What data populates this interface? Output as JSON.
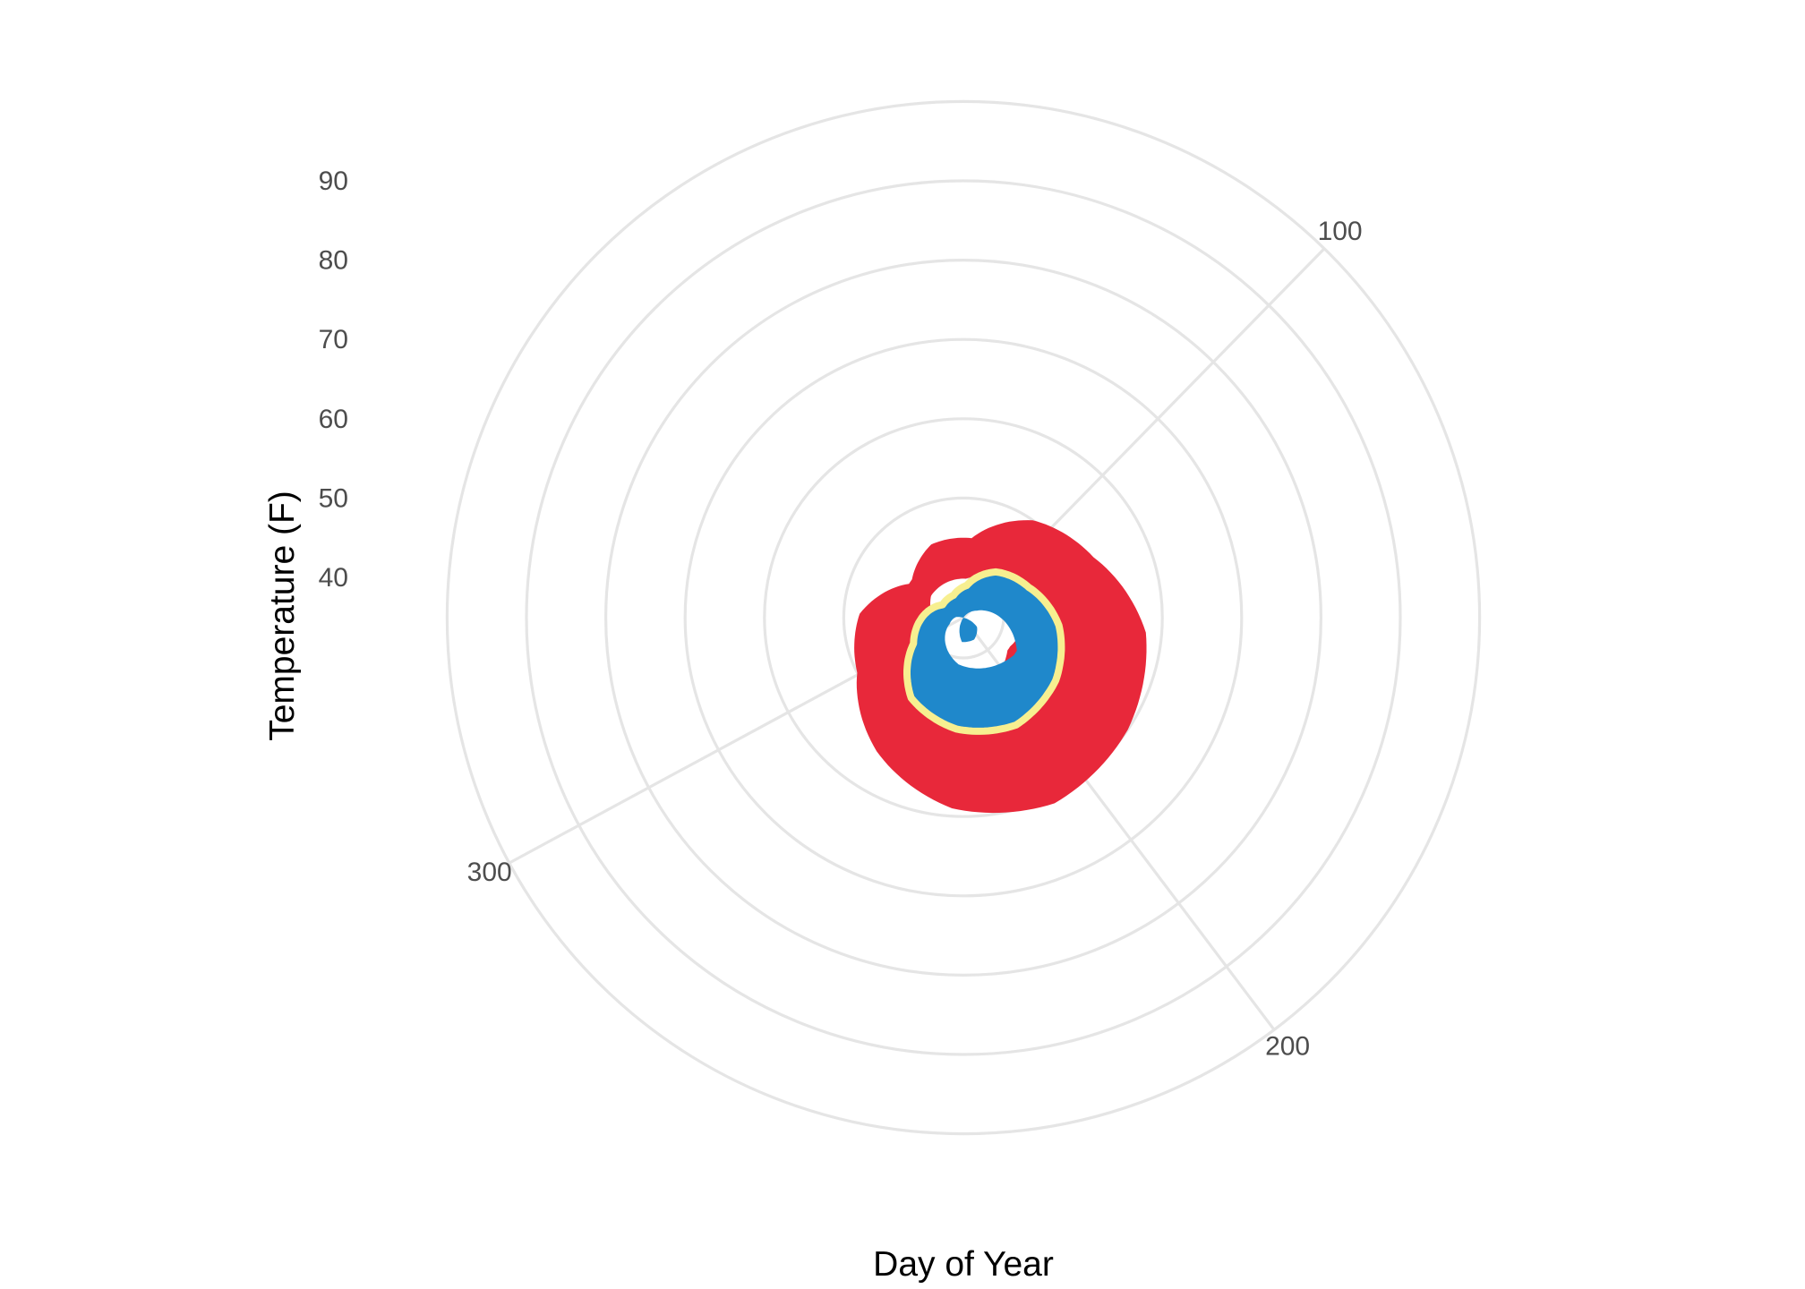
{
  "chart_data": {
    "type": "area",
    "coordinate_system": "polar",
    "xlabel": "Day of Year",
    "ylabel": "Temperature (F)",
    "x_ticks": [
      100,
      200,
      300
    ],
    "y_ticks": [
      40,
      50,
      60,
      70,
      80,
      90
    ],
    "xlim": [
      1,
      366
    ],
    "ylim": [
      25,
      95
    ],
    "grid": true,
    "legend": "none",
    "series": [
      {
        "role": "range",
        "fill": "#e8283a",
        "x": [
          1,
          31,
          61,
          91,
          121,
          151,
          181,
          211,
          241,
          271,
          301,
          331,
          361
        ],
        "low": [
          28,
          26,
          27,
          28,
          29,
          31,
          30,
          30,
          30,
          29,
          29,
          27,
          28
        ],
        "high": [
          43,
          45,
          45,
          50,
          53,
          58,
          60,
          61,
          59,
          55,
          50,
          48,
          43
        ]
      },
      {
        "role": "band",
        "fill": "#1f88cb",
        "x": [
          1,
          31,
          61,
          91,
          121,
          151,
          181,
          211,
          241,
          271,
          301,
          331,
          361
        ],
        "low": [
          27,
          28,
          29,
          31,
          33,
          34,
          37,
          38,
          38,
          35,
          33,
          30,
          27
        ],
        "high": [
          38,
          38,
          39,
          42,
          44,
          47,
          49,
          50,
          49,
          47,
          42,
          40,
          38
        ]
      },
      {
        "role": "line",
        "stroke": "#f7ef90",
        "x": [
          1,
          31,
          61,
          91,
          121,
          151,
          181,
          211,
          241,
          271,
          301,
          331,
          361
        ],
        "values": [
          38,
          38,
          39,
          42,
          44,
          47,
          49,
          50,
          49,
          47,
          42,
          40,
          38
        ]
      }
    ]
  }
}
